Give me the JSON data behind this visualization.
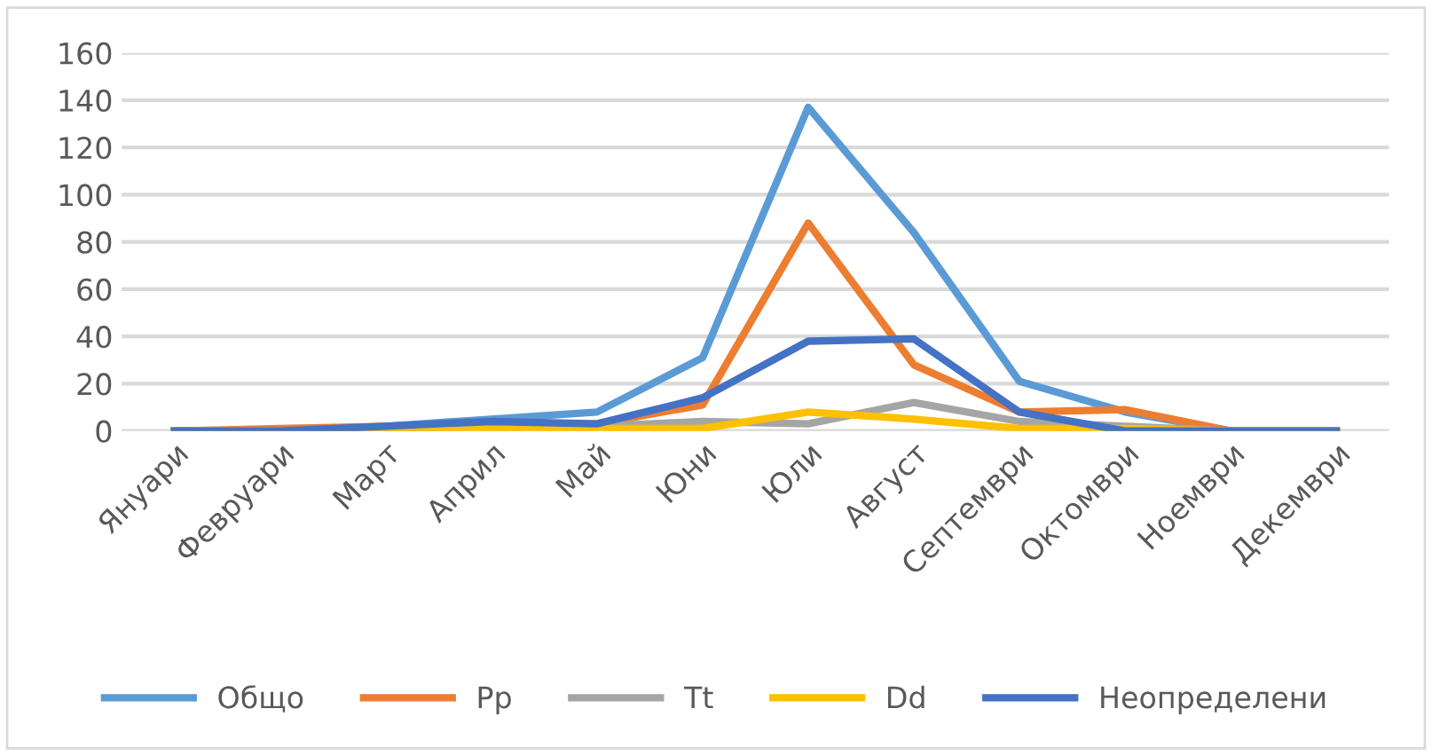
{
  "chart_data": {
    "type": "line",
    "categories": [
      "Януари",
      "Февруари",
      "Март",
      "Април",
      "Май",
      "Юни",
      "Юли",
      "Август",
      "Септември",
      "Октомври",
      "Ноември",
      "Декември"
    ],
    "series": [
      {
        "name": "Общо",
        "color": "#5b9bd5",
        "values": [
          0,
          0,
          2,
          5,
          8,
          31,
          137,
          84,
          21,
          8,
          0,
          0
        ]
      },
      {
        "name": "Pp",
        "color": "#ed7d31",
        "values": [
          0,
          1,
          2,
          3,
          3,
          11,
          88,
          28,
          8,
          9,
          0,
          0
        ]
      },
      {
        "name": "Tt",
        "color": "#a5a5a5",
        "values": [
          0,
          0,
          1,
          2,
          2,
          4,
          3,
          12,
          4,
          2,
          0,
          0
        ]
      },
      {
        "name": "Dd",
        "color": "#ffc000",
        "values": [
          0,
          0,
          0,
          1,
          1,
          1,
          8,
          5,
          1,
          1,
          0,
          0
        ]
      },
      {
        "name": "Неопределени",
        "color": "#4472c4",
        "values": [
          0,
          0,
          2,
          4,
          3,
          14,
          38,
          39,
          8,
          0,
          0,
          0
        ]
      }
    ],
    "ylim": [
      0,
      160
    ],
    "yticks": [
      0,
      20,
      40,
      60,
      80,
      100,
      120,
      140,
      160
    ],
    "grid": "y",
    "legend": "bottom",
    "marker": "none",
    "line_style": "solid"
  }
}
